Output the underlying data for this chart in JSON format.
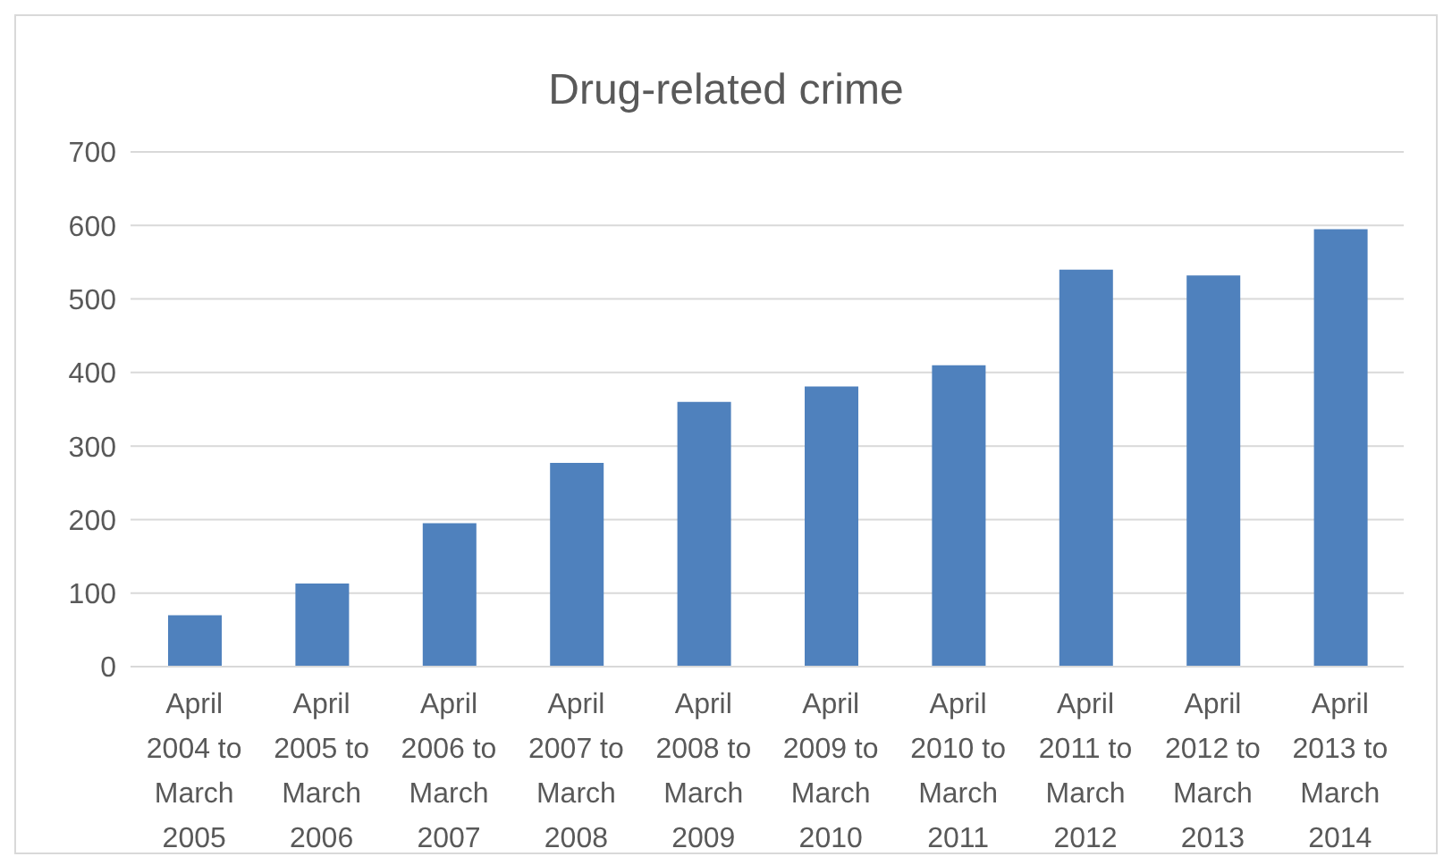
{
  "chart_data": {
    "type": "bar",
    "title": "Drug-related crime",
    "categories": [
      "April 2004 to March 2005",
      "April 2005 to March 2006",
      "April 2006 to March 2007",
      "April 2007 to March 2008",
      "April 2008 to March 2009",
      "April 2009 to March 2010",
      "April 2010 to March 2011",
      "April 2011 to March 2012",
      "April 2012 to March 2013",
      "April 2013 to March 2014"
    ],
    "values": [
      70,
      113,
      195,
      277,
      360,
      381,
      410,
      540,
      532,
      595
    ],
    "color": "#4f81bd",
    "ylim": [
      0,
      700
    ],
    "yticks": [
      0,
      100,
      200,
      300,
      400,
      500,
      600,
      700
    ],
    "grid": "y",
    "legend": false
  }
}
